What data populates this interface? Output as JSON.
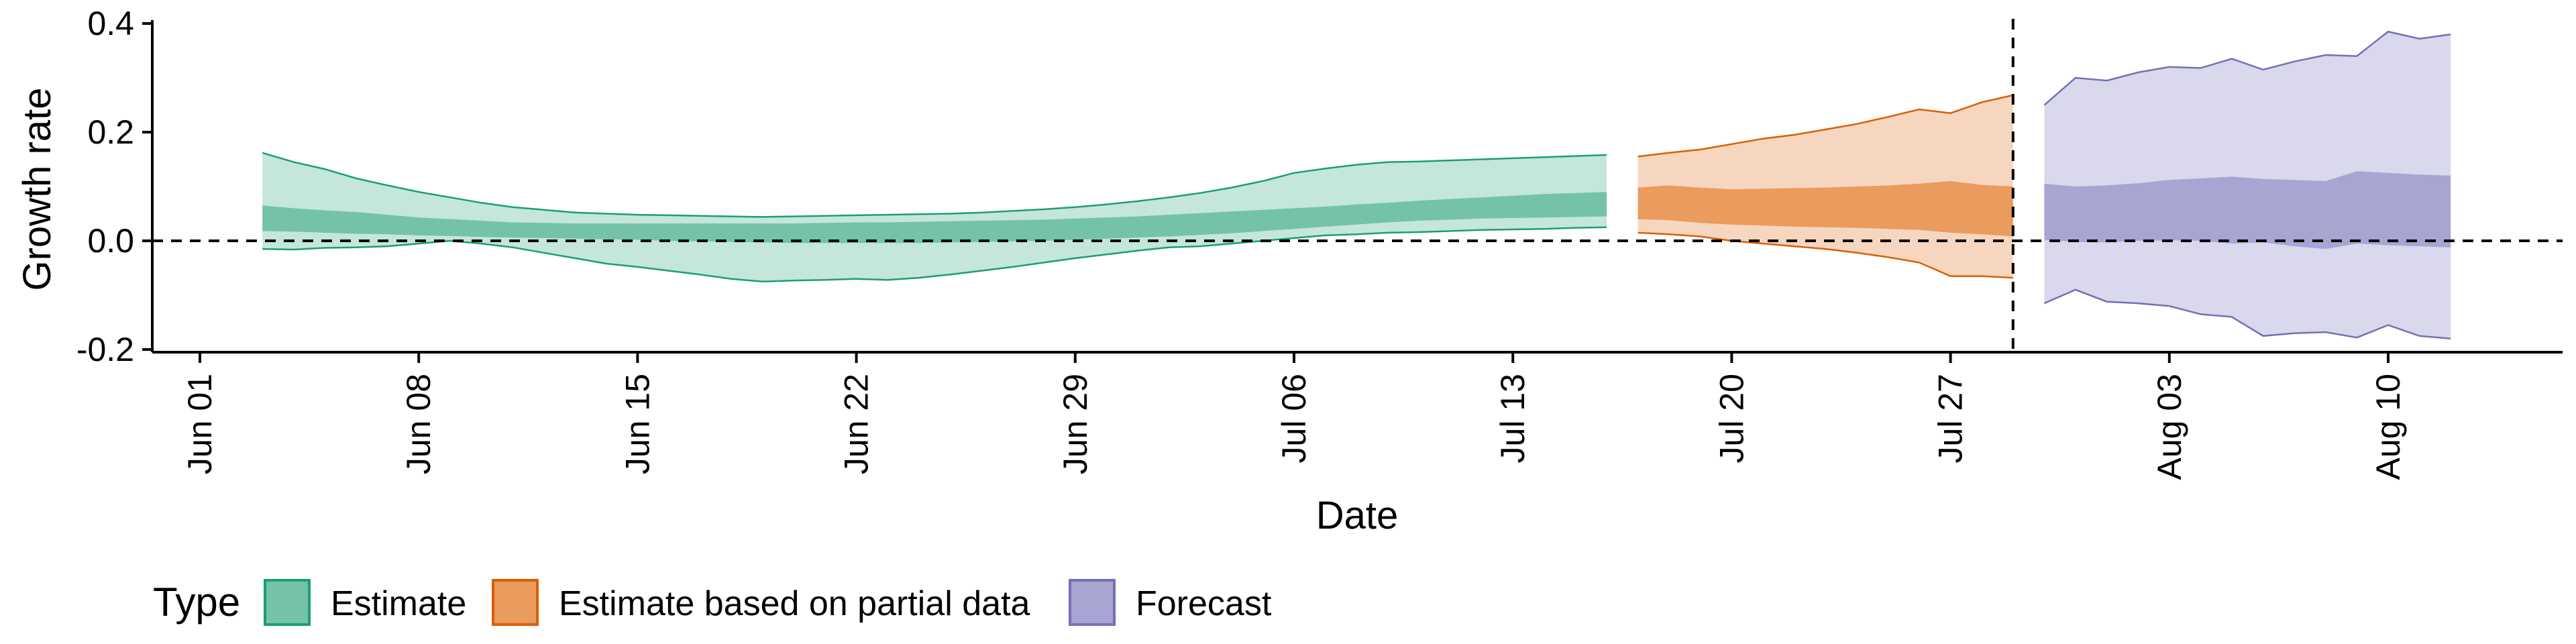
{
  "chart_data": {
    "type": "area",
    "xlabel": "Date",
    "ylabel": "Growth rate",
    "ylim": [
      -0.2,
      0.42
    ],
    "xlim": [
      "2020-05-30",
      "2020-08-19"
    ],
    "y_ticks": [
      {
        "value": 0.4,
        "label": "0.4"
      },
      {
        "value": 0.2,
        "label": "0.2"
      },
      {
        "value": 0.0,
        "label": "0.0"
      },
      {
        "value": -0.2,
        "label": "-0.2"
      }
    ],
    "x_ticks": [
      {
        "date": "2020-06-01",
        "label": "Jun 01"
      },
      {
        "date": "2020-06-08",
        "label": "Jun 08"
      },
      {
        "date": "2020-06-15",
        "label": "Jun 15"
      },
      {
        "date": "2020-06-22",
        "label": "Jun 22"
      },
      {
        "date": "2020-06-29",
        "label": "Jun 29"
      },
      {
        "date": "2020-07-06",
        "label": "Jul 06"
      },
      {
        "date": "2020-07-13",
        "label": "Jul 13"
      },
      {
        "date": "2020-07-20",
        "label": "Jul 20"
      },
      {
        "date": "2020-07-27",
        "label": "Jul 27"
      },
      {
        "date": "2020-08-03",
        "label": "Aug 03"
      },
      {
        "date": "2020-08-10",
        "label": "Aug 10"
      }
    ],
    "reference_lines": [
      {
        "axis": "y",
        "value": 0,
        "style": "dashed"
      },
      {
        "axis": "x",
        "date": "2020-07-29",
        "style": "dashed"
      }
    ],
    "legend": {
      "title": "Type",
      "position": "bottom-left",
      "items": [
        "Estimate",
        "Estimate based on partial data",
        "Forecast"
      ]
    },
    "series": [
      {
        "name": "Estimate",
        "color": "#1b9e77",
        "outer_fill": "#c4e6db",
        "inner_fill": "#74c3a7",
        "line_color": "#1b9e77",
        "dates": [
          "2020-06-03",
          "2020-06-04",
          "2020-06-05",
          "2020-06-06",
          "2020-06-07",
          "2020-06-08",
          "2020-06-09",
          "2020-06-10",
          "2020-06-11",
          "2020-06-12",
          "2020-06-13",
          "2020-06-14",
          "2020-06-15",
          "2020-06-16",
          "2020-06-17",
          "2020-06-18",
          "2020-06-19",
          "2020-06-20",
          "2020-06-21",
          "2020-06-22",
          "2020-06-23",
          "2020-06-24",
          "2020-06-25",
          "2020-06-26",
          "2020-06-27",
          "2020-06-28",
          "2020-06-29",
          "2020-06-30",
          "2020-07-01",
          "2020-07-02",
          "2020-07-03",
          "2020-07-04",
          "2020-07-05",
          "2020-07-06",
          "2020-07-07",
          "2020-07-08",
          "2020-07-09",
          "2020-07-10",
          "2020-07-11",
          "2020-07-12",
          "2020-07-13",
          "2020-07-14",
          "2020-07-15",
          "2020-07-16"
        ],
        "upper90": [
          0.162,
          0.145,
          0.132,
          0.115,
          0.102,
          0.09,
          0.08,
          0.07,
          0.062,
          0.057,
          0.052,
          0.05,
          0.048,
          0.047,
          0.046,
          0.045,
          0.044,
          0.045,
          0.046,
          0.047,
          0.048,
          0.049,
          0.05,
          0.052,
          0.055,
          0.058,
          0.062,
          0.067,
          0.073,
          0.08,
          0.088,
          0.098,
          0.11,
          0.125,
          0.133,
          0.14,
          0.145,
          0.146,
          0.148,
          0.15,
          0.152,
          0.154,
          0.156,
          0.158
        ],
        "lower90": [
          -0.015,
          -0.016,
          -0.013,
          -0.012,
          -0.01,
          -0.005,
          0.0,
          -0.005,
          -0.012,
          -0.022,
          -0.032,
          -0.042,
          -0.048,
          -0.055,
          -0.062,
          -0.07,
          -0.075,
          -0.073,
          -0.072,
          -0.07,
          -0.072,
          -0.068,
          -0.062,
          -0.055,
          -0.048,
          -0.04,
          -0.032,
          -0.025,
          -0.018,
          -0.012,
          -0.01,
          -0.005,
          0.0,
          0.005,
          0.01,
          0.012,
          0.015,
          0.016,
          0.018,
          0.02,
          0.021,
          0.022,
          0.024,
          0.025
        ],
        "upper50": [
          0.065,
          0.06,
          0.056,
          0.053,
          0.048,
          0.043,
          0.04,
          0.037,
          0.034,
          0.033,
          0.032,
          0.032,
          0.032,
          0.032,
          0.032,
          0.032,
          0.032,
          0.032,
          0.033,
          0.034,
          0.034,
          0.035,
          0.036,
          0.037,
          0.038,
          0.039,
          0.041,
          0.043,
          0.045,
          0.048,
          0.051,
          0.054,
          0.057,
          0.06,
          0.063,
          0.067,
          0.07,
          0.074,
          0.077,
          0.08,
          0.083,
          0.086,
          0.088,
          0.09
        ],
        "lower50": [
          0.018,
          0.017,
          0.015,
          0.013,
          0.012,
          0.01,
          0.009,
          0.007,
          0.006,
          0.005,
          0.004,
          0.003,
          0.002,
          0.0,
          -0.001,
          -0.002,
          -0.003,
          -0.004,
          -0.004,
          -0.004,
          -0.004,
          -0.004,
          -0.003,
          -0.002,
          -0.001,
          0.0,
          0.002,
          0.004,
          0.006,
          0.008,
          0.011,
          0.014,
          0.018,
          0.022,
          0.026,
          0.03,
          0.034,
          0.037,
          0.039,
          0.041,
          0.042,
          0.043,
          0.044,
          0.045
        ]
      },
      {
        "name": "Estimate based on partial data",
        "color": "#d95f02",
        "outer_fill": "#f7d6bf",
        "inner_fill": "#ea9b5e",
        "line_color": "#d95f02",
        "dates": [
          "2020-07-17",
          "2020-07-18",
          "2020-07-19",
          "2020-07-20",
          "2020-07-21",
          "2020-07-22",
          "2020-07-23",
          "2020-07-24",
          "2020-07-25",
          "2020-07-26",
          "2020-07-27",
          "2020-07-28",
          "2020-07-29"
        ],
        "upper90": [
          0.155,
          0.162,
          0.168,
          0.178,
          0.188,
          0.195,
          0.205,
          0.215,
          0.228,
          0.242,
          0.235,
          0.255,
          0.268
        ],
        "lower90": [
          0.015,
          0.012,
          0.008,
          0.0,
          -0.005,
          -0.01,
          -0.015,
          -0.022,
          -0.03,
          -0.04,
          -0.065,
          -0.065,
          -0.068
        ],
        "upper50": [
          0.098,
          0.102,
          0.098,
          0.095,
          0.096,
          0.097,
          0.098,
          0.1,
          0.102,
          0.105,
          0.11,
          0.103,
          0.1
        ],
        "lower50": [
          0.04,
          0.038,
          0.033,
          0.03,
          0.028,
          0.026,
          0.025,
          0.024,
          0.022,
          0.02,
          0.015,
          0.012,
          0.008
        ]
      },
      {
        "name": "Forecast",
        "color": "#7570b3",
        "outer_fill": "#d9d8ec",
        "inner_fill": "#a8a5d3",
        "line_color": "#7570b3",
        "dates": [
          "2020-07-30",
          "2020-07-31",
          "2020-08-01",
          "2020-08-02",
          "2020-08-03",
          "2020-08-04",
          "2020-08-05",
          "2020-08-06",
          "2020-08-07",
          "2020-08-08",
          "2020-08-09",
          "2020-08-10",
          "2020-08-11",
          "2020-08-12"
        ],
        "upper90": [
          0.25,
          0.3,
          0.295,
          0.31,
          0.32,
          0.318,
          0.335,
          0.315,
          0.33,
          0.342,
          0.34,
          0.385,
          0.372,
          0.38
        ],
        "lower90": [
          -0.115,
          -0.09,
          -0.112,
          -0.115,
          -0.12,
          -0.135,
          -0.14,
          -0.175,
          -0.17,
          -0.168,
          -0.178,
          -0.155,
          -0.175,
          -0.18
        ],
        "upper50": [
          0.105,
          0.1,
          0.102,
          0.106,
          0.112,
          0.115,
          0.118,
          0.114,
          0.112,
          0.11,
          0.128,
          0.125,
          0.122,
          0.12
        ],
        "lower50": [
          0.002,
          -0.002,
          -0.003,
          0.0,
          0.001,
          0.0,
          -0.005,
          -0.003,
          -0.01,
          -0.015,
          -0.005,
          -0.008,
          -0.01,
          -0.012
        ]
      }
    ]
  }
}
